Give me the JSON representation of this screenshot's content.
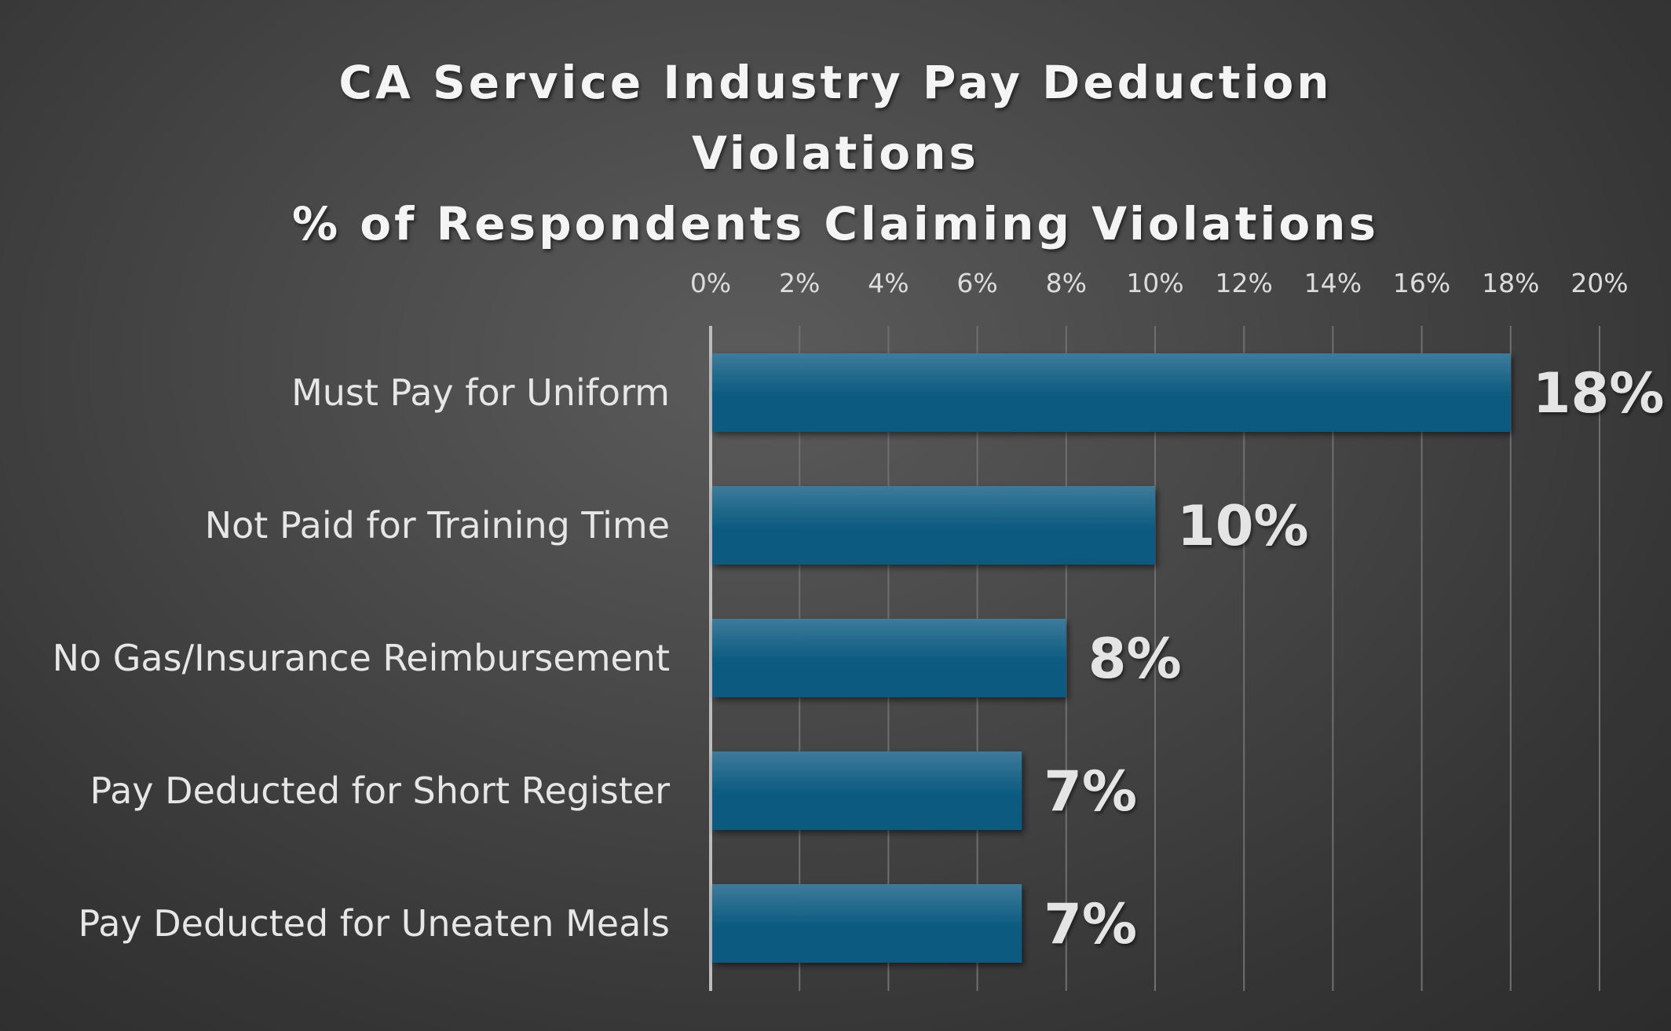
{
  "colors": {
    "bar": "#0b5a80",
    "bar_top": "#3d7b9a",
    "gridline": "#6f6f6f",
    "axis_line": "#bdbdbd"
  },
  "chart_data": {
    "type": "bar",
    "orientation": "horizontal",
    "title_lines": [
      "CA Service Industry Pay Deduction",
      "Violations",
      "% of Respondents Claiming Violations"
    ],
    "categories": [
      "Must Pay for Uniform",
      "Not Paid for Training Time",
      "No Gas/Insurance Reimbursement",
      "Pay Deducted for Short Register",
      "Pay Deducted for Uneaten Meals"
    ],
    "values": [
      18,
      10,
      8,
      7,
      7
    ],
    "data_labels": [
      "18%",
      "10%",
      "8%",
      "7%",
      "7%"
    ],
    "xlim": [
      0,
      20
    ],
    "x_ticks": [
      "0%",
      "2%",
      "4%",
      "6%",
      "8%",
      "10%",
      "12%",
      "14%",
      "16%",
      "18%",
      "20%"
    ],
    "x_axis_position": "top",
    "grid": true,
    "legend": "none"
  }
}
